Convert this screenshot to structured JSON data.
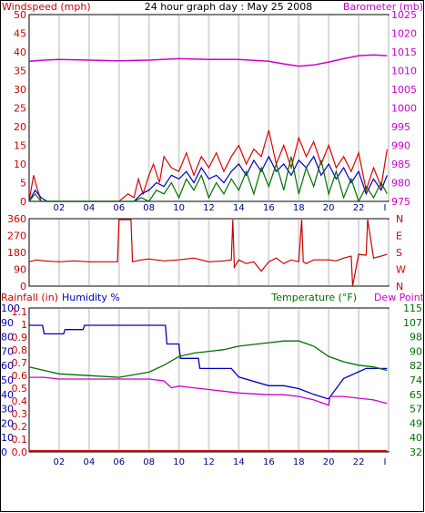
{
  "title": "24 hour graph day : May 25 2008",
  "colors": {
    "wind_gust": "#e00000",
    "wind_avg": "#0000c0",
    "wind_green": "#007000",
    "barometer": "#cc00cc",
    "direction": "#cc0000",
    "rain": "#cc0000",
    "humidity": "#0000c0",
    "temperature": "#007000",
    "dewpoint": "#cc00cc",
    "grid": "#d8d8d8"
  },
  "x_ticks": [
    "02",
    "04",
    "06",
    "08",
    "10",
    "12",
    "14",
    "16",
    "18",
    "20",
    "22",
    "I"
  ],
  "chart_data": [
    {
      "type": "line",
      "name": "wind-barometer",
      "left_axis_label": "Windspeed (mph)",
      "right_axis_label": "Barometer (mb)",
      "left_ticks": [
        "0",
        "5",
        "10",
        "15",
        "20",
        "25",
        "30",
        "35",
        "40",
        "45",
        "50"
      ],
      "right_ticks": [
        "975",
        "980",
        "985",
        "990",
        "995",
        "1000",
        "1005",
        "1010",
        "1015",
        "1020",
        "1025"
      ],
      "ylim_left": [
        0,
        50
      ],
      "ylim_right": [
        975,
        1025
      ],
      "series": [
        {
          "key": "barometer",
          "axis": "right",
          "x": [
            0,
            1,
            2,
            4,
            6,
            8,
            10,
            12,
            14,
            16,
            17,
            18,
            19,
            20,
            21,
            22,
            23,
            23.9
          ],
          "y": [
            1012.5,
            1012.8,
            1013,
            1012.8,
            1012.6,
            1012.8,
            1013.2,
            1013,
            1013,
            1012.5,
            1011.8,
            1011.2,
            1011.5,
            1012.3,
            1013.2,
            1014,
            1014.2,
            1014
          ]
        },
        {
          "key": "wind_gust",
          "axis": "left",
          "x": [
            0,
            0.3,
            0.5,
            0.8,
            1,
            2,
            4,
            5,
            6,
            6.6,
            7,
            7.3,
            7.6,
            8,
            8.3,
            8.7,
            9,
            9.5,
            10,
            10.5,
            11,
            11.5,
            12,
            12.5,
            13,
            13.5,
            14,
            14.5,
            15,
            15.5,
            16,
            16.5,
            17,
            17.5,
            18,
            18.5,
            19,
            19.5,
            20,
            20.5,
            21,
            21.5,
            22,
            22.5,
            23,
            23.5,
            23.9
          ],
          "y": [
            0,
            7,
            4,
            0,
            0,
            0,
            0,
            0,
            0,
            2,
            1,
            6,
            2,
            7,
            10,
            5,
            12,
            9,
            8,
            13,
            7,
            12,
            9,
            13,
            8,
            12,
            15,
            10,
            14,
            12,
            19,
            10,
            15,
            9,
            17,
            12,
            16,
            10,
            15,
            9,
            12,
            8,
            13,
            3,
            9,
            4,
            14
          ]
        },
        {
          "key": "wind_avg",
          "axis": "left",
          "x": [
            0,
            0.4,
            0.8,
            1.2,
            2,
            4,
            6,
            7,
            7.5,
            8,
            8.5,
            9,
            9.5,
            10,
            10.5,
            11,
            11.5,
            12,
            12.5,
            13,
            13.5,
            14,
            14.5,
            15,
            15.5,
            16,
            16.5,
            17,
            17.5,
            18,
            18.5,
            19,
            19.5,
            20,
            20.5,
            21,
            21.5,
            22,
            22.5,
            23,
            23.5,
            23.9
          ],
          "y": [
            0,
            3,
            1,
            0,
            0,
            0,
            0,
            0,
            2,
            3,
            5,
            4,
            7,
            6,
            8,
            5,
            9,
            6,
            7,
            5,
            8,
            10,
            7,
            11,
            8,
            12,
            8,
            10,
            7,
            11,
            9,
            12,
            7,
            10,
            6,
            9,
            5,
            8,
            2,
            6,
            3,
            7
          ]
        },
        {
          "key": "wind_green",
          "axis": "left",
          "x": [
            0,
            0.4,
            0.8,
            1.5,
            2,
            4,
            6,
            7,
            7.5,
            8,
            8.5,
            9,
            9.5,
            10,
            10.5,
            11,
            11.5,
            12,
            12.5,
            13,
            13.5,
            14,
            14.5,
            15,
            15.5,
            16,
            16.5,
            17,
            17.5,
            18,
            18.5,
            19,
            19.5,
            20,
            20.5,
            21,
            21.5,
            22,
            22.5,
            23,
            23.5,
            23.9
          ],
          "y": [
            0,
            2,
            0,
            0,
            0,
            0,
            0,
            0,
            1,
            0,
            3,
            2,
            5,
            1,
            6,
            3,
            7,
            1,
            5,
            2,
            6,
            3,
            8,
            2,
            9,
            4,
            10,
            3,
            12,
            2,
            9,
            4,
            11,
            2,
            8,
            1,
            6,
            0,
            4,
            1,
            5,
            2
          ]
        }
      ]
    },
    {
      "type": "line",
      "name": "wind-direction",
      "left_ticks": [
        "0",
        "90",
        "180",
        "270",
        "360"
      ],
      "right_ticks": [
        "N",
        "W",
        "S",
        "E",
        "N"
      ],
      "ylim": [
        0,
        360
      ],
      "series": [
        {
          "key": "direction",
          "x": [
            0,
            0.5,
            1,
            2,
            3,
            4,
            5,
            5.9,
            6,
            6.8,
            6.9,
            7.5,
            8,
            9,
            10,
            11,
            12,
            13,
            13.5,
            13.6,
            13.7,
            14,
            14.5,
            15,
            15.5,
            16,
            16.5,
            17,
            17.5,
            18,
            18.2,
            18.3,
            18.5,
            19,
            20,
            20.5,
            21,
            21.5,
            21.6,
            22,
            22.5,
            22.6,
            23,
            23.5,
            23.9
          ],
          "y": [
            130,
            140,
            135,
            130,
            135,
            130,
            130,
            130,
            355,
            355,
            130,
            140,
            145,
            135,
            140,
            150,
            130,
            135,
            140,
            355,
            100,
            140,
            120,
            130,
            80,
            130,
            150,
            120,
            140,
            130,
            355,
            130,
            120,
            140,
            140,
            135,
            150,
            160,
            0,
            170,
            165,
            355,
            150,
            160,
            170
          ]
        }
      ]
    },
    {
      "type": "line",
      "name": "rain-humidity-temp",
      "labels": {
        "rainfall": "Rainfall (in)",
        "humidity": "Humidity %",
        "temperature": "Temperature (°F)",
        "dewpoint": "Dew Point"
      },
      "humidity_ticks": [
        "0",
        "10",
        "20",
        "30",
        "40",
        "50",
        "60",
        "70",
        "80",
        "90",
        "100"
      ],
      "rain_ticks": [
        "0.0",
        "0.1",
        "0.2",
        "0.3",
        "0.4",
        "0.5",
        "0.6",
        "0.7",
        "0.8",
        "0.9",
        "1",
        "1.1"
      ],
      "temp_ticks": [
        "32",
        "40",
        "49",
        "57",
        "65",
        "74",
        "82",
        "90",
        "98",
        "107",
        "115"
      ],
      "ylim_humidity": [
        0,
        100
      ],
      "ylim_temp": [
        32,
        115
      ],
      "series": [
        {
          "key": "humidity",
          "axis": "humidity",
          "x": [
            0,
            0.9,
            1,
            2.3,
            2.4,
            3.6,
            3.7,
            9.1,
            9.2,
            10,
            10.1,
            11.3,
            11.4,
            13.5,
            14,
            16,
            17,
            18,
            19,
            19.9,
            20,
            21,
            22.5,
            23.9
          ],
          "y": [
            88,
            88,
            82,
            82,
            85,
            85,
            88,
            88,
            75,
            75,
            65,
            65,
            58,
            58,
            52,
            46,
            46,
            44,
            40,
            37,
            37,
            51,
            58,
            58
          ]
        },
        {
          "key": "temperature",
          "axis": "temp",
          "x": [
            0,
            1,
            2,
            4,
            6,
            8,
            9,
            10,
            11,
            12,
            13,
            14,
            15,
            16,
            17,
            18,
            19,
            20,
            21,
            22,
            23,
            23.9
          ],
          "y": [
            81,
            79,
            77,
            76,
            75,
            78,
            82,
            87,
            89,
            90,
            91,
            93,
            94,
            95,
            96,
            96,
            93,
            87,
            84,
            82,
            81,
            79
          ]
        },
        {
          "key": "dewpoint",
          "axis": "temp",
          "x": [
            0,
            1,
            2,
            4,
            6,
            8,
            9,
            9.5,
            10,
            11,
            12,
            14,
            16,
            17,
            18,
            19,
            20,
            20.1,
            21,
            22,
            23,
            23.9
          ],
          "y": [
            75,
            75,
            74,
            74,
            74,
            74,
            73,
            69,
            70,
            69,
            68,
            66,
            65,
            65,
            64,
            62,
            59,
            64,
            64,
            63,
            62,
            60
          ]
        },
        {
          "key": "rain",
          "axis": "rain",
          "x": [
            0,
            23.9
          ],
          "y": [
            0,
            0
          ]
        }
      ]
    }
  ]
}
